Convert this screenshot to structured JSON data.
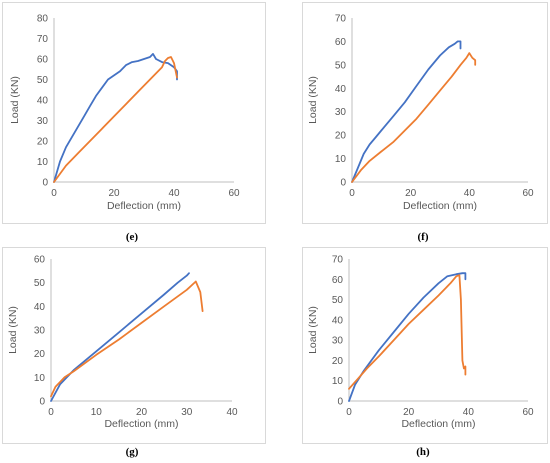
{
  "chart_data": [
    {
      "type": "line",
      "panel_label": "(e)",
      "xlabel": "Deflection (mm)",
      "ylabel": "Load (KN)",
      "xlim": [
        0,
        60
      ],
      "ylim": [
        0,
        80
      ],
      "x_ticks": [
        0,
        20,
        40,
        60
      ],
      "y_ticks": [
        0,
        10,
        20,
        30,
        40,
        50,
        60,
        70,
        80
      ],
      "grid": "none",
      "series": [
        {
          "color": "#4472C4",
          "x": [
            0,
            2,
            4,
            6,
            8,
            10,
            12,
            14,
            16,
            18,
            20,
            22,
            24,
            26,
            28,
            30,
            32,
            33,
            34,
            36,
            38,
            40,
            41,
            41
          ],
          "y": [
            0,
            10,
            17,
            22,
            27,
            32,
            37,
            42,
            46,
            50,
            52,
            54,
            57,
            58.5,
            59,
            60,
            61,
            62.5,
            60,
            58.5,
            58,
            56,
            54,
            50
          ]
        },
        {
          "color": "#ED7D31",
          "x": [
            0,
            4,
            8,
            12,
            16,
            20,
            24,
            28,
            32,
            34,
            36,
            37,
            38,
            39,
            40,
            41
          ],
          "y": [
            0,
            8,
            14,
            20,
            26,
            32,
            38,
            44,
            50,
            53,
            56,
            59,
            60.5,
            61,
            58,
            51
          ]
        }
      ]
    },
    {
      "type": "line",
      "panel_label": "(f)",
      "xlabel": "Deflection (mm)",
      "ylabel": "Load (KN)",
      "xlim": [
        0,
        60
      ],
      "ylim": [
        0,
        70
      ],
      "x_ticks": [
        0,
        20,
        40,
        60
      ],
      "y_ticks": [
        0,
        10,
        20,
        30,
        40,
        50,
        60,
        70
      ],
      "grid": "none",
      "series": [
        {
          "color": "#4472C4",
          "x": [
            0,
            2,
            4,
            6,
            8,
            10,
            14,
            18,
            22,
            26,
            30,
            33,
            35,
            36,
            37,
            37
          ],
          "y": [
            0,
            6,
            12,
            16,
            19,
            22,
            28,
            34,
            41,
            48,
            54,
            57.5,
            59,
            60,
            60,
            57
          ]
        },
        {
          "color": "#ED7D31",
          "x": [
            0,
            3,
            6,
            10,
            14,
            18,
            22,
            26,
            30,
            34,
            37,
            39,
            40,
            41,
            42,
            42
          ],
          "y": [
            0,
            5,
            9,
            13,
            17,
            22,
            27,
            33,
            39,
            45,
            50,
            53,
            55,
            53,
            52,
            50
          ]
        }
      ]
    },
    {
      "type": "line",
      "panel_label": "(g)",
      "xlabel": "Deflection (mm)",
      "ylabel": "Load (KN)",
      "xlim": [
        0,
        40
      ],
      "ylim": [
        0,
        60
      ],
      "x_ticks": [
        0,
        10,
        20,
        30,
        40
      ],
      "y_ticks": [
        0,
        10,
        20,
        30,
        40,
        50,
        60
      ],
      "grid": "none",
      "series": [
        {
          "color": "#4472C4",
          "x": [
            0,
            2,
            5,
            10,
            15,
            20,
            25,
            28,
            30,
            30.5
          ],
          "y": [
            0,
            7,
            13,
            21,
            29,
            37,
            45,
            50,
            53,
            54
          ]
        },
        {
          "color": "#ED7D31",
          "x": [
            0,
            1,
            3,
            5,
            10,
            15,
            20,
            25,
            30,
            32,
            33,
            33.5
          ],
          "y": [
            2,
            6,
            10,
            12.5,
            19.5,
            26,
            33,
            40,
            47,
            50.5,
            46,
            38
          ]
        }
      ]
    },
    {
      "type": "line",
      "panel_label": "(h)",
      "xlabel": "Deflection (mm)",
      "ylabel": "Load (KN)",
      "xlim": [
        0,
        60
      ],
      "ylim": [
        0,
        70
      ],
      "x_ticks": [
        0,
        20,
        40,
        60
      ],
      "y_ticks": [
        0,
        10,
        20,
        30,
        40,
        50,
        60,
        70
      ],
      "grid": "none",
      "series": [
        {
          "color": "#4472C4",
          "x": [
            0,
            2,
            5,
            10,
            15,
            20,
            25,
            30,
            33,
            36,
            38,
            39,
            39
          ],
          "y": [
            0,
            8,
            15,
            25,
            34,
            43,
            51,
            58,
            61.5,
            62.5,
            63,
            63,
            60
          ]
        },
        {
          "color": "#ED7D31",
          "x": [
            0,
            3,
            6,
            10,
            15,
            20,
            25,
            30,
            34,
            36,
            37,
            37.5,
            38,
            38.5,
            39,
            39
          ],
          "y": [
            6,
            11,
            16,
            22,
            30,
            38,
            45,
            52,
            58,
            61.5,
            62,
            50,
            20,
            16,
            17,
            13
          ]
        }
      ]
    }
  ]
}
